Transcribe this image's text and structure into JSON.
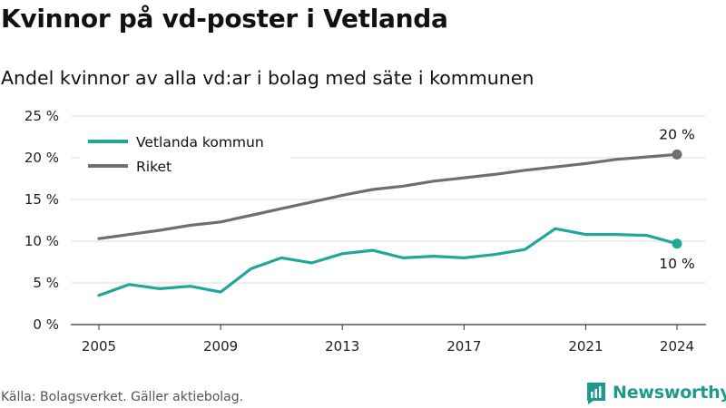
{
  "title": "Kvinnor på vd-poster i Vetlanda",
  "subtitle": "Andel kvinnor av alla vd:ar i bolag med säte i kommunen",
  "source": "Källa: Bolagsverket. Gäller aktiebolag.",
  "brand": "Newsworthy",
  "colors": {
    "vetlanda": "#1fa89a",
    "riket": "#6e6e73",
    "grid": "#dcdcdc",
    "brand": "#1e9a8c"
  },
  "chart_data": {
    "type": "line",
    "x": [
      2005,
      2006,
      2007,
      2008,
      2009,
      2010,
      2011,
      2012,
      2013,
      2014,
      2015,
      2016,
      2017,
      2018,
      2019,
      2020,
      2021,
      2022,
      2023,
      2024
    ],
    "series": [
      {
        "name": "Vetlanda kommun",
        "values": [
          3.5,
          4.8,
          4.3,
          4.6,
          3.9,
          6.7,
          8.0,
          7.4,
          8.5,
          8.9,
          8.0,
          8.2,
          8.0,
          8.4,
          9.0,
          11.5,
          10.8,
          10.8,
          10.7,
          9.7
        ]
      },
      {
        "name": "Riket",
        "values": [
          10.3,
          10.8,
          11.3,
          11.9,
          12.3,
          13.1,
          13.9,
          14.7,
          15.5,
          16.2,
          16.6,
          17.2,
          17.6,
          18.0,
          18.5,
          18.9,
          19.3,
          19.8,
          20.1,
          20.4
        ]
      }
    ],
    "ylim": [
      0,
      25
    ],
    "y_ticks": [
      0,
      5,
      10,
      15,
      20,
      25
    ],
    "y_tick_labels": [
      "0 %",
      "5 %",
      "10 %",
      "15 %",
      "20 %",
      "25 %"
    ],
    "x_ticks": [
      2005,
      2009,
      2013,
      2017,
      2021,
      2024
    ],
    "x_tick_labels": [
      "2005",
      "2009",
      "2013",
      "2017",
      "2021",
      "2024"
    ],
    "end_labels": [
      "10 %",
      "20 %"
    ],
    "legend_position": "top-left",
    "grid": true
  }
}
